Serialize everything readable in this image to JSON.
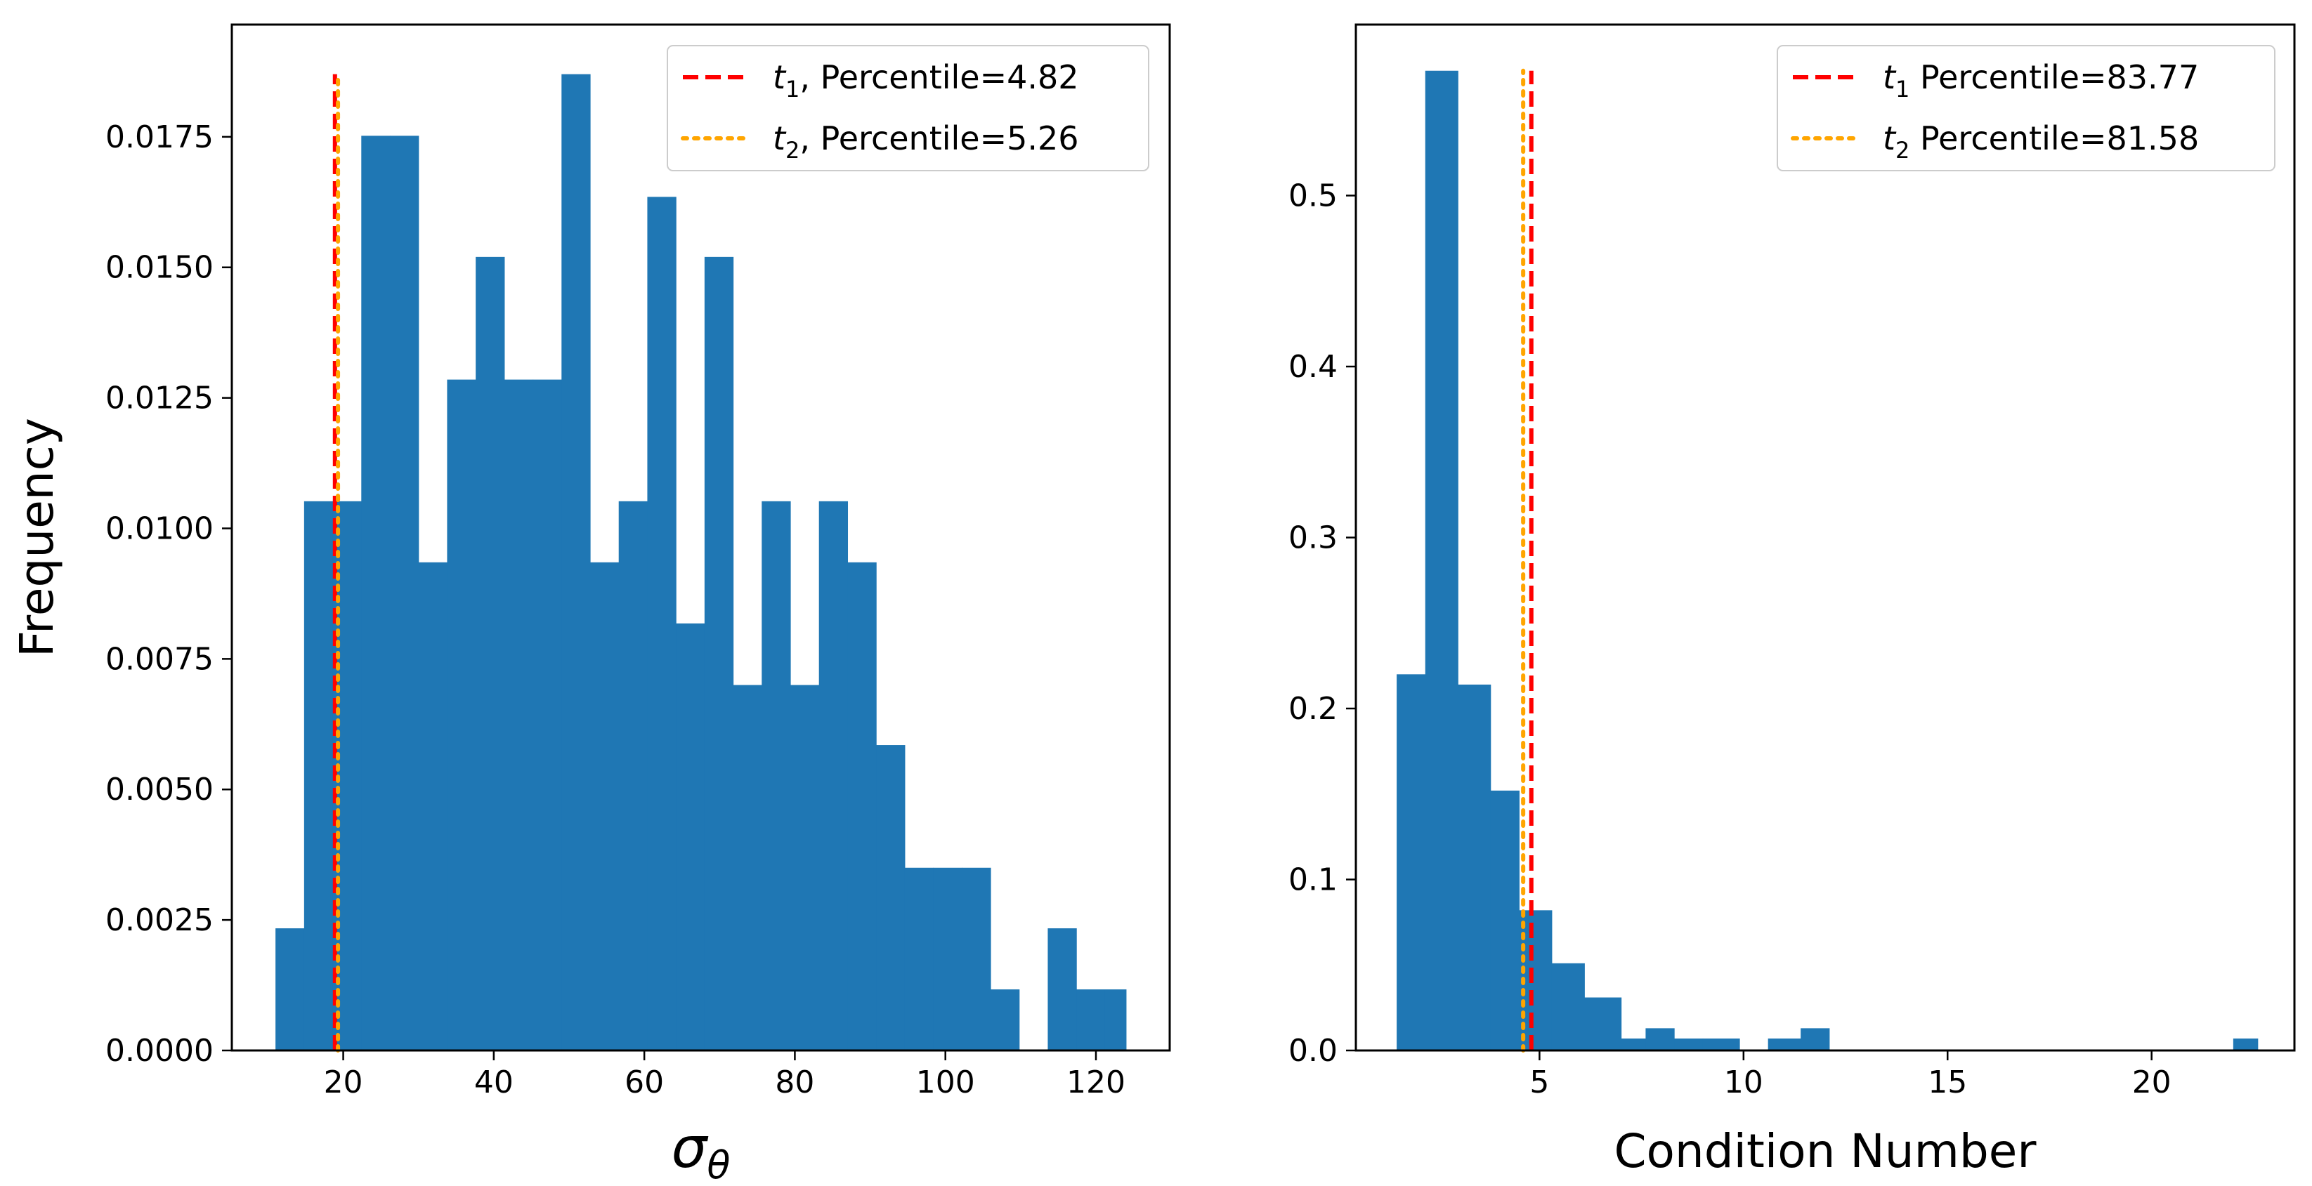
{
  "chart_data": [
    {
      "type": "bar",
      "xlabel": "σ",
      "xlabel_sub": "θ",
      "ylabel": "Frequency",
      "xlim": [
        5.2,
        129.8
      ],
      "ylim": [
        0,
        0.01965
      ],
      "x_ticks": [
        20,
        40,
        60,
        80,
        100,
        120
      ],
      "x_tick_labels": [
        "20",
        "40",
        "60",
        "80",
        "100",
        "120"
      ],
      "y_ticks": [
        0,
        0.0025,
        0.005,
        0.0075,
        0.01,
        0.0125,
        0.015,
        0.0175
      ],
      "y_tick_labels": [
        "0.0000",
        "0.0025",
        "0.0050",
        "0.0075",
        "0.0100",
        "0.0125",
        "0.0150",
        "0.0175"
      ],
      "bar_color": "#1f77b4",
      "bin_edges": [
        11.0,
        14.8,
        18.6,
        22.4,
        26.2,
        30.0,
        33.8,
        37.6,
        41.4,
        45.2,
        49.0,
        52.8,
        56.6,
        60.4,
        64.2,
        68.0,
        71.8,
        75.6,
        79.4,
        83.2,
        87.0,
        90.8,
        94.6,
        98.4,
        102.2,
        106.0,
        109.8,
        113.6,
        117.4,
        121.2,
        124.0
      ],
      "values": [
        0.00234,
        0.01052,
        0.01052,
        0.01752,
        0.01752,
        0.00935,
        0.01285,
        0.0152,
        0.01285,
        0.01285,
        0.0187,
        0.00935,
        0.01052,
        0.01635,
        0.00818,
        0.0152,
        0.007,
        0.01052,
        0.007,
        0.01052,
        0.00935,
        0.00585,
        0.0035,
        0.0035,
        0.0035,
        0.00117,
        0.0,
        0.00234,
        0.00117,
        0.00117
      ],
      "vlines": [
        {
          "x": 18.9,
          "ymax": 0.0187,
          "style": "dashed",
          "color": "#ff0000"
        },
        {
          "x": 19.3,
          "ymax": 0.0187,
          "style": "dotted",
          "color": "#ffa500"
        }
      ],
      "legend": {
        "placement": "upper right",
        "entries": [
          {
            "var": "t",
            "sub": "1",
            "text": ", Percentile=4.82",
            "style": "dashed",
            "color": "#ff0000"
          },
          {
            "var": "t",
            "sub": "2",
            "text": ", Percentile=5.26",
            "style": "dotted",
            "color": "#ffa500"
          }
        ]
      },
      "grid": false
    },
    {
      "type": "bar",
      "xlabel": "Condition Number",
      "ylabel": "",
      "xlim": [
        0.5,
        23.5
      ],
      "ylim": [
        0,
        0.6
      ],
      "x_ticks": [
        5,
        10,
        15,
        20
      ],
      "x_tick_labels": [
        "5",
        "10",
        "15",
        "20"
      ],
      "y_ticks": [
        0,
        0.1,
        0.2,
        0.3,
        0.4,
        0.5
      ],
      "y_tick_labels": [
        "0.0",
        "0.1",
        "0.2",
        "0.3",
        "0.4",
        "0.5"
      ],
      "bar_color": "#1f77b4",
      "bin_edges": [
        1.5,
        2.2,
        3.0,
        3.8,
        4.5,
        5.3,
        6.1,
        7.0,
        7.6,
        8.3,
        9.0,
        9.9,
        10.6,
        11.4,
        12.1,
        12.8
      ],
      "values": [
        0.22,
        0.573,
        0.214,
        0.152,
        0.082,
        0.051,
        0.031,
        0.007,
        0.013,
        0.007,
        0.007,
        0.0,
        0.007,
        0.013,
        0.0
      ],
      "extra_bins": [
        {
          "x0": 22.0,
          "x1": 22.6,
          "value": 0.007
        }
      ],
      "vlines": [
        {
          "x": 4.8,
          "ymax": 0.573,
          "style": "dashed",
          "color": "#ff0000"
        },
        {
          "x": 4.6,
          "ymax": 0.573,
          "style": "dotted",
          "color": "#ffa500"
        }
      ],
      "legend": {
        "placement": "upper right",
        "entries": [
          {
            "var": "t",
            "sub": "1",
            "text": " Percentile=83.77",
            "style": "dashed",
            "color": "#ff0000"
          },
          {
            "var": "t",
            "sub": "2",
            "text": " Percentile=81.58",
            "style": "dotted",
            "color": "#ffa500"
          }
        ]
      },
      "grid": false
    }
  ]
}
